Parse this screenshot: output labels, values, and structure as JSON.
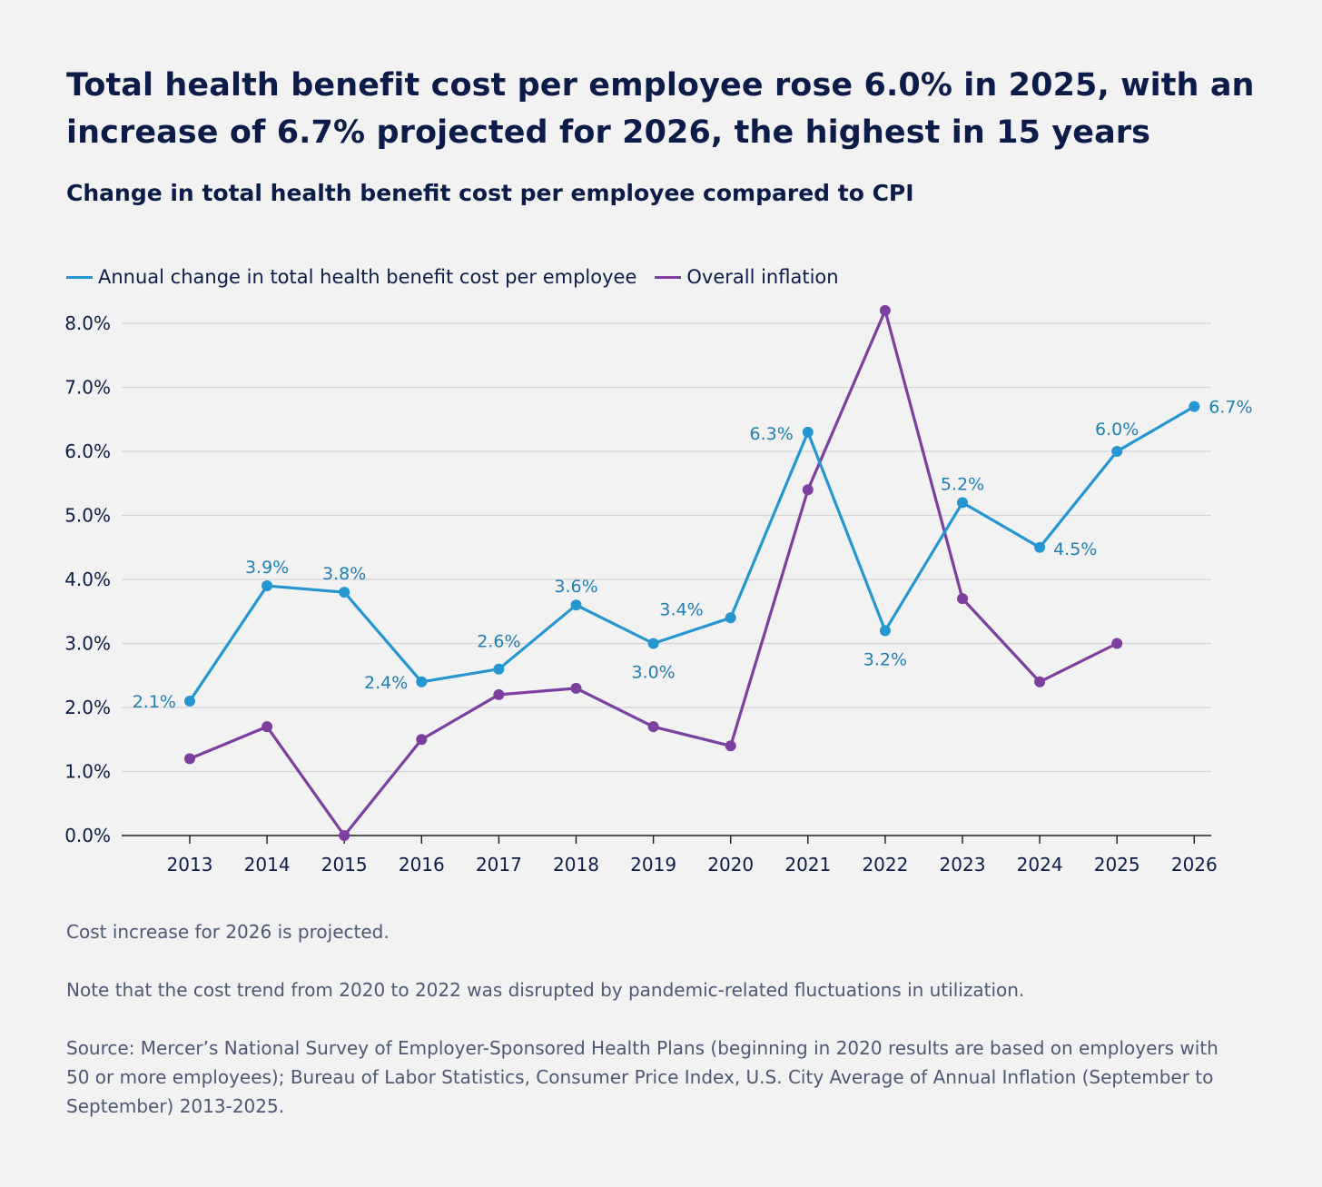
{
  "title": "Total health benefit cost per employee rose 6.0% in 2025, with an increase of 6.7% projected for 2026, the highest in 15 years",
  "subtitle": "Change in total health benefit cost per employee compared to CPI",
  "chart_data": {
    "type": "line",
    "title": "Change in total health benefit cost per employee compared to CPI",
    "xlabel": "",
    "ylabel": "",
    "x": [
      "2013",
      "2014",
      "2015",
      "2016",
      "2017",
      "2018",
      "2019",
      "2020",
      "2021",
      "2022",
      "2023",
      "2024",
      "2025",
      "2026"
    ],
    "ylim": [
      0,
      8
    ],
    "yticks": [
      0,
      1,
      2,
      3,
      4,
      5,
      6,
      7,
      8
    ],
    "ytick_labels": [
      "0.0%",
      "1.0%",
      "2.0%",
      "3.0%",
      "4.0%",
      "5.0%",
      "6.0%",
      "7.0%",
      "8.0%"
    ],
    "grid": true,
    "legend_position": "top-left",
    "series": [
      {
        "name": "Annual change in total health benefit cost per employee",
        "color": "#2596d0",
        "label_color": "#1f7fb0",
        "values": [
          2.1,
          3.9,
          3.8,
          2.4,
          2.6,
          3.6,
          3.0,
          3.4,
          6.3,
          3.2,
          5.2,
          4.5,
          6.0,
          6.7
        ],
        "labels": [
          "2.1%",
          "3.9%",
          "3.8%",
          "2.4%",
          "2.6%",
          "3.6%",
          "3.0%",
          "3.4%",
          "6.3%",
          "3.2%",
          "5.2%",
          "4.5%",
          "6.0%",
          "6.7%"
        ]
      },
      {
        "name": "Overall inflation",
        "color": "#7c3f9e",
        "values": [
          1.2,
          1.7,
          0.0,
          1.5,
          2.2,
          2.3,
          1.7,
          1.4,
          5.4,
          8.2,
          3.7,
          2.4,
          3.0,
          null
        ]
      }
    ]
  },
  "notes": {
    "projection": "Cost increase for 2026 is projected.",
    "pandemic": "Note that the cost trend from 2020 to 2022 was disrupted by pandemic-related fluctuations in utilization.",
    "source": "Source: Mercer’s National Survey of Employer-Sponsored Health Plans (beginning in 2020 results are based on employers with 50 or more employees); Bureau of Labor Statistics, Consumer Price Index, U.S. City Average of Annual Inflation (September to September) 2013-2025."
  }
}
